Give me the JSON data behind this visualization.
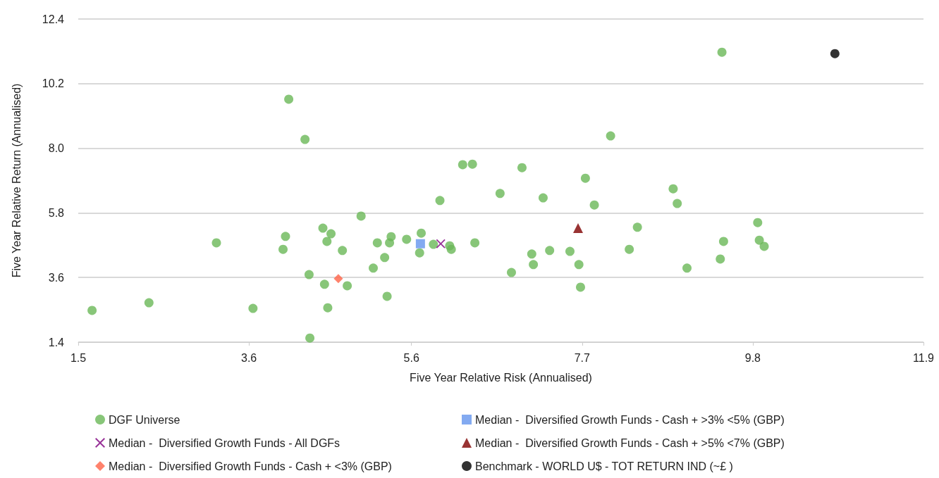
{
  "chart_data": {
    "type": "scatter",
    "xlabel": "Five Year Relative Risk (Annualised)",
    "ylabel": "Five Year Relative Return (Annualised)",
    "xlim": [
      1.5,
      11.9
    ],
    "xticks": [
      1.5,
      3.6,
      5.6,
      7.7,
      9.8,
      11.9
    ],
    "ylim": [
      1.4,
      12.4
    ],
    "yticks": [
      1.4,
      3.6,
      5.8,
      {
        "value": 8,
        "label": "8.0"
      },
      10.2,
      12.4
    ],
    "grid": "y",
    "legend": "bottom",
    "series": [
      {
        "name": "DGF Universe",
        "color": "#6ab858",
        "marker": "circle",
        "x": [
          1.67,
          2.37,
          3.2,
          3.65,
          4.02,
          4.05,
          4.09,
          4.29,
          4.34,
          4.35,
          4.51,
          4.53,
          4.56,
          4.57,
          4.61,
          4.75,
          4.81,
          4.98,
          5.13,
          5.18,
          5.27,
          5.3,
          5.33,
          5.35,
          5.54,
          5.7,
          5.72,
          5.87,
          5.95,
          6.07,
          6.09,
          6.23,
          6.35,
          6.38,
          6.69,
          6.83,
          6.96,
          7.08,
          7.1,
          7.22,
          7.3,
          7.55,
          7.66,
          7.68,
          7.74,
          7.85,
          8.05,
          8.28,
          8.38,
          8.82,
          8.87,
          8.99,
          9.4,
          9.42,
          9.44,
          9.86,
          9.88,
          9.94
        ],
        "values": [
          2.48,
          2.74,
          4.78,
          2.55,
          4.56,
          5.0,
          9.67,
          8.3,
          3.7,
          1.54,
          5.28,
          3.37,
          4.83,
          2.57,
          5.09,
          4.52,
          3.32,
          5.69,
          3.92,
          4.78,
          4.28,
          2.96,
          4.78,
          4.99,
          4.9,
          4.44,
          5.11,
          4.73,
          6.22,
          4.68,
          4.56,
          7.44,
          7.46,
          4.78,
          6.46,
          3.77,
          7.34,
          4.4,
          4.04,
          6.31,
          4.52,
          4.49,
          4.04,
          3.27,
          6.98,
          6.07,
          8.42,
          4.56,
          5.31,
          6.62,
          6.12,
          3.92,
          4.23,
          11.27,
          4.83,
          5.47,
          4.87,
          4.66
        ]
      },
      {
        "name": "Median -  Diversified Growth Funds - All DGFs",
        "color": "#800080",
        "marker": "cross",
        "x": [
          5.96
        ],
        "values": [
          4.75
        ]
      },
      {
        "name": "Median -  Diversified Growth Funds - Cash + <3% (GBP)",
        "color": "#ff6347",
        "marker": "diamond",
        "x": [
          4.7
        ],
        "values": [
          3.56
        ]
      },
      {
        "name": "Median -  Diversified Growth Funds - Cash + >3% <5% (GBP)",
        "color": "#6495ed",
        "marker": "square",
        "x": [
          5.71
        ],
        "values": [
          4.75
        ]
      },
      {
        "name": "Median -  Diversified Growth Funds - Cash + >5% <7% (GBP)",
        "color": "#800000",
        "marker": "triangle",
        "x": [
          7.65
        ],
        "values": [
          5.28
        ]
      },
      {
        "name": "Benchmark - WORLD U$ - TOT RETURN IND (~£ )",
        "color": "#000000",
        "marker": "circle",
        "x": [
          10.81
        ],
        "values": [
          11.22
        ]
      }
    ]
  }
}
